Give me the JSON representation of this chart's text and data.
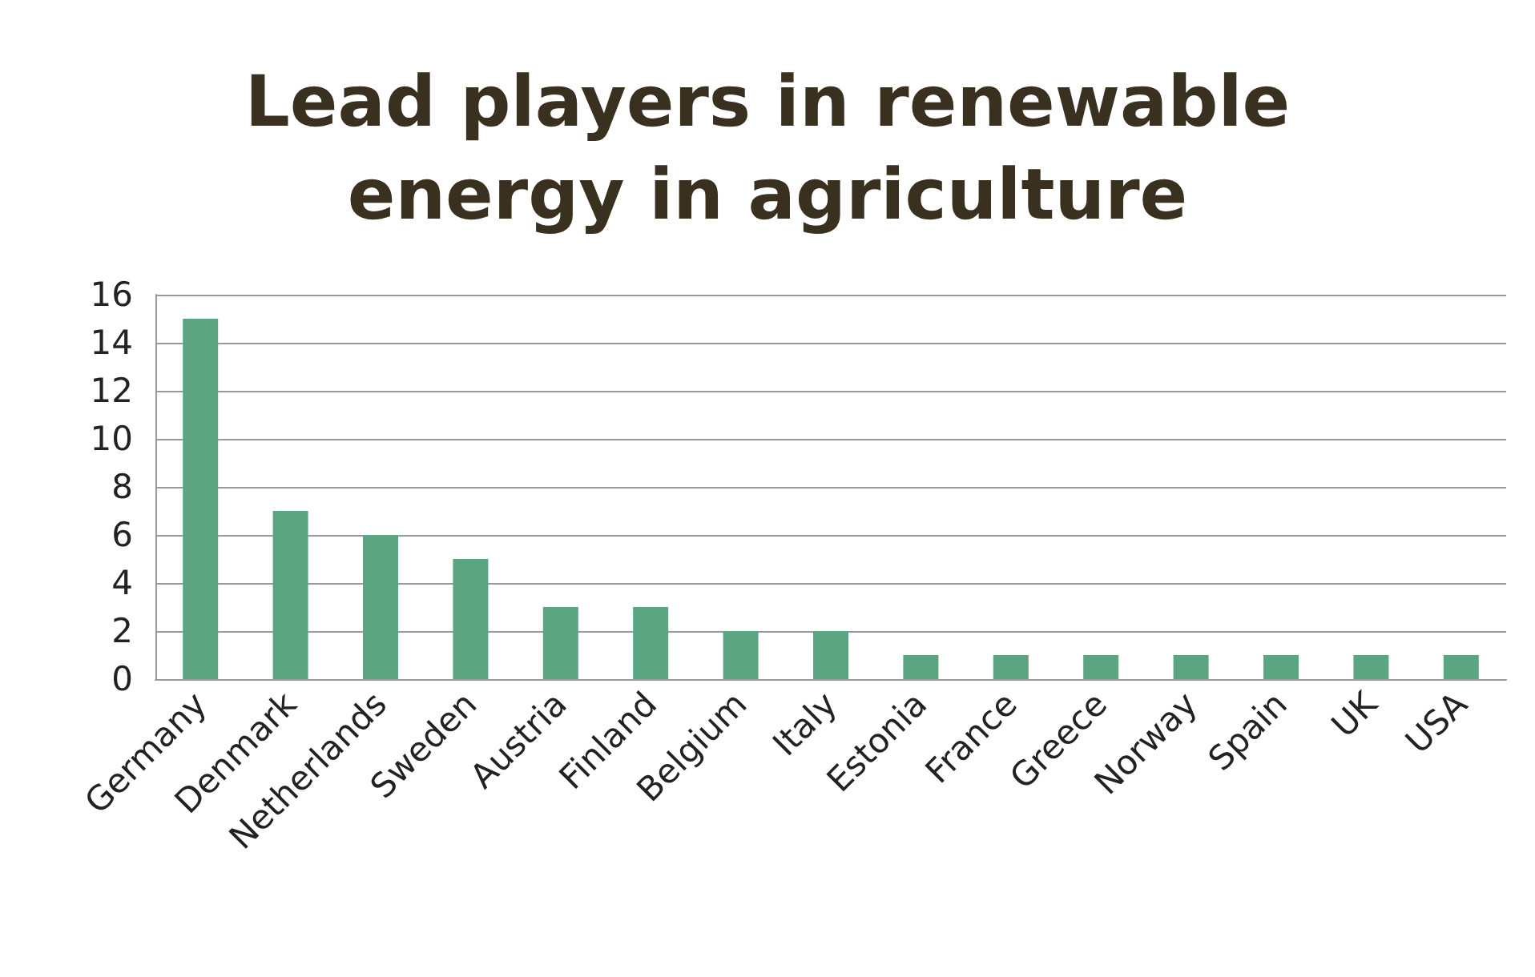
{
  "chart_data": {
    "type": "bar",
    "title": "Lead players in renewable\nenergy in agriculture",
    "categories": [
      "Germany",
      "Denmark",
      "Netherlands",
      "Sweden",
      "Austria",
      "Finland",
      "Belgium",
      "Italy",
      "Estonia",
      "France",
      "Greece",
      "Norway",
      "Spain",
      "UK",
      "USA"
    ],
    "values": [
      15,
      7,
      6,
      5,
      3,
      3,
      2,
      2,
      1,
      1,
      1,
      1,
      1,
      1,
      1
    ],
    "color": "#5ba583",
    "ylim": [
      0,
      16
    ],
    "yticks": [
      0,
      2,
      4,
      6,
      8,
      10,
      12,
      14,
      16
    ],
    "grid": "y"
  }
}
